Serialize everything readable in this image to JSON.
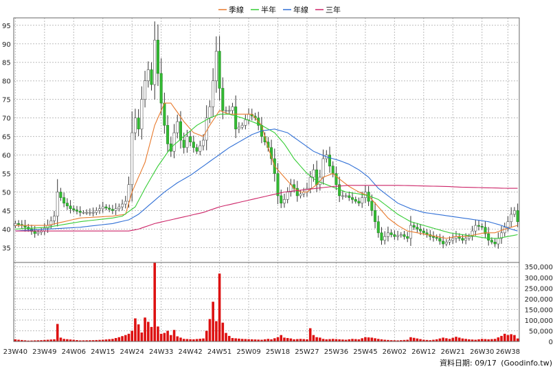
{
  "chart_data": {
    "type": "candlestick",
    "legend": {
      "placement": "top-center",
      "items": [
        {
          "label": "季線",
          "color": "#e8792b"
        },
        {
          "label": "半年",
          "color": "#33cc33"
        },
        {
          "label": "年線",
          "color": "#2f6fd6"
        },
        {
          "label": "三年",
          "color": "#cc2266"
        }
      ]
    },
    "price_axis": {
      "ylim": [
        31,
        97
      ],
      "ticks": [
        35,
        40,
        45,
        50,
        55,
        60,
        65,
        70,
        75,
        80,
        85,
        90,
        95
      ],
      "tick_labels": [
        "35",
        "40",
        "45",
        "50",
        "55",
        "60",
        "65",
        "70",
        "75",
        "80",
        "85",
        "90",
        "95"
      ],
      "grid": true
    },
    "volume_axis": {
      "ylim": [
        0,
        370000
      ],
      "ticks": [
        0,
        50000,
        100000,
        150000,
        200000,
        250000,
        300000,
        350000
      ],
      "tick_labels": [
        "0",
        "50,000",
        "100,000",
        "150,000",
        "200,000",
        "250,000",
        "300,000",
        "350,000"
      ],
      "grid": true
    },
    "x_axis": {
      "n_weeks": 156,
      "tick_weeks": [
        0,
        9,
        18,
        27,
        36,
        45,
        54,
        63,
        72,
        81,
        90,
        99,
        108,
        117,
        126,
        135,
        144,
        152
      ],
      "tick_labels": [
        "23W40",
        "23W49",
        "24W06",
        "24W15",
        "24W24",
        "24W33",
        "24W42",
        "24W51",
        "25W09",
        "25W18",
        "25W27",
        "25W36",
        "25W45",
        "26W02",
        "26W12",
        "26W21",
        "26W30",
        "26W38"
      ]
    },
    "close_anchors": [
      [
        0,
        41.5
      ],
      [
        2,
        41
      ],
      [
        4,
        40
      ],
      [
        6,
        38.8
      ],
      [
        8,
        39.5
      ],
      [
        10,
        41
      ],
      [
        12,
        43.5
      ],
      [
        13,
        50
      ],
      [
        15,
        47
      ],
      [
        17,
        45.5
      ],
      [
        20,
        44.5
      ],
      [
        24,
        44.5
      ],
      [
        27,
        46
      ],
      [
        30,
        45
      ],
      [
        32,
        46
      ],
      [
        34,
        47.5
      ],
      [
        35,
        52
      ],
      [
        36,
        66
      ],
      [
        37,
        70
      ],
      [
        38,
        67
      ],
      [
        39,
        75
      ],
      [
        40,
        80
      ],
      [
        41,
        83
      ],
      [
        42,
        79
      ],
      [
        43,
        91
      ],
      [
        44,
        82
      ],
      [
        45,
        74
      ],
      [
        46,
        68
      ],
      [
        47,
        63
      ],
      [
        48,
        61
      ],
      [
        49,
        66
      ],
      [
        50,
        69
      ],
      [
        51,
        64
      ],
      [
        52,
        62
      ],
      [
        53,
        65
      ],
      [
        55,
        62
      ],
      [
        56,
        61
      ],
      [
        58,
        64
      ],
      [
        59,
        70
      ],
      [
        60,
        73
      ],
      [
        61,
        80
      ],
      [
        62,
        88
      ],
      [
        63,
        78
      ],
      [
        64,
        72
      ],
      [
        66,
        72
      ],
      [
        67,
        73
      ],
      [
        68,
        67
      ],
      [
        70,
        68
      ],
      [
        72,
        71
      ],
      [
        74,
        70
      ],
      [
        75,
        68
      ],
      [
        76,
        65
      ],
      [
        78,
        62
      ],
      [
        79,
        59
      ],
      [
        80,
        55
      ],
      [
        81,
        49
      ],
      [
        82,
        47
      ],
      [
        83,
        48
      ],
      [
        85,
        52
      ],
      [
        86,
        51
      ],
      [
        87,
        49
      ],
      [
        89,
        50
      ],
      [
        90,
        51
      ],
      [
        91,
        54
      ],
      [
        92,
        56
      ],
      [
        93,
        52
      ],
      [
        94,
        54
      ],
      [
        95,
        59
      ],
      [
        96,
        60
      ],
      [
        97,
        57
      ],
      [
        98,
        55
      ],
      [
        99,
        52
      ],
      [
        100,
        49
      ],
      [
        102,
        49
      ],
      [
        104,
        48
      ],
      [
        106,
        47
      ],
      [
        108,
        50
      ],
      [
        110,
        45
      ],
      [
        112,
        39
      ],
      [
        113,
        37
      ],
      [
        115,
        39
      ],
      [
        117,
        38
      ],
      [
        119,
        38.5
      ],
      [
        121,
        37.5
      ],
      [
        122,
        41
      ],
      [
        124,
        40
      ],
      [
        126,
        39
      ],
      [
        128,
        38
      ],
      [
        130,
        37.5
      ],
      [
        132,
        36
      ],
      [
        134,
        37
      ],
      [
        136,
        38
      ],
      [
        138,
        37
      ],
      [
        140,
        38
      ],
      [
        142,
        41
      ],
      [
        144,
        40.5
      ],
      [
        146,
        37
      ],
      [
        148,
        36
      ],
      [
        150,
        39
      ],
      [
        152,
        42
      ],
      [
        153,
        44
      ],
      [
        154,
        45
      ],
      [
        155,
        42
      ]
    ],
    "moving_averages": [
      {
        "name": "季線",
        "color": "#e8792b",
        "points": [
          [
            0,
            41
          ],
          [
            10,
            41
          ],
          [
            20,
            43
          ],
          [
            30,
            43.5
          ],
          [
            34,
            44
          ],
          [
            36,
            50
          ],
          [
            40,
            58
          ],
          [
            43,
            68
          ],
          [
            46,
            74
          ],
          [
            48,
            74
          ],
          [
            52,
            69
          ],
          [
            55,
            66
          ],
          [
            58,
            65
          ],
          [
            60,
            68
          ],
          [
            63,
            72
          ],
          [
            66,
            71
          ],
          [
            70,
            71
          ],
          [
            73,
            71
          ],
          [
            76,
            68
          ],
          [
            78,
            62
          ],
          [
            80,
            57
          ],
          [
            83,
            54
          ],
          [
            86,
            51
          ],
          [
            88,
            50
          ],
          [
            90,
            50
          ],
          [
            93,
            52
          ],
          [
            95,
            54
          ],
          [
            98,
            55
          ],
          [
            100,
            53.5
          ],
          [
            103,
            51.5
          ],
          [
            106,
            50
          ],
          [
            109,
            49
          ],
          [
            112,
            46
          ],
          [
            115,
            43
          ],
          [
            118,
            41
          ],
          [
            121,
            39.5
          ],
          [
            124,
            39
          ],
          [
            127,
            38.5
          ],
          [
            130,
            38
          ],
          [
            133,
            37.5
          ],
          [
            136,
            38
          ],
          [
            139,
            38
          ],
          [
            142,
            38.5
          ],
          [
            145,
            39
          ],
          [
            148,
            39
          ],
          [
            151,
            40
          ],
          [
            155,
            41
          ]
        ]
      },
      {
        "name": "半年",
        "color": "#33cc33",
        "points": [
          [
            0,
            40
          ],
          [
            10,
            40.5
          ],
          [
            20,
            42
          ],
          [
            30,
            43
          ],
          [
            33,
            43.5
          ],
          [
            37,
            46
          ],
          [
            40,
            51
          ],
          [
            44,
            57
          ],
          [
            48,
            62
          ],
          [
            52,
            65
          ],
          [
            56,
            68
          ],
          [
            60,
            70
          ],
          [
            63,
            71
          ],
          [
            66,
            71
          ],
          [
            70,
            70
          ],
          [
            73,
            69
          ],
          [
            76,
            68
          ],
          [
            80,
            66
          ],
          [
            83,
            63
          ],
          [
            86,
            59
          ],
          [
            90,
            55
          ],
          [
            93,
            53
          ],
          [
            96,
            52
          ],
          [
            99,
            51
          ],
          [
            102,
            50
          ],
          [
            106,
            49.5
          ],
          [
            109,
            49
          ],
          [
            112,
            48
          ],
          [
            115,
            46
          ],
          [
            118,
            44
          ],
          [
            122,
            42
          ],
          [
            126,
            41
          ],
          [
            130,
            40
          ],
          [
            134,
            39
          ],
          [
            138,
            38.5
          ],
          [
            142,
            38
          ],
          [
            146,
            37.5
          ],
          [
            149,
            37.5
          ],
          [
            152,
            38
          ],
          [
            155,
            38.5
          ]
        ]
      },
      {
        "name": "年線",
        "color": "#2f6fd6",
        "points": [
          [
            0,
            39.5
          ],
          [
            10,
            40
          ],
          [
            20,
            40.5
          ],
          [
            30,
            41.5
          ],
          [
            35,
            42.5
          ],
          [
            38,
            44
          ],
          [
            42,
            47
          ],
          [
            46,
            50
          ],
          [
            50,
            52.5
          ],
          [
            54,
            54.5
          ],
          [
            58,
            57
          ],
          [
            62,
            59.5
          ],
          [
            66,
            62
          ],
          [
            70,
            64
          ],
          [
            73,
            65.5
          ],
          [
            76,
            66.5
          ],
          [
            80,
            67
          ],
          [
            84,
            66
          ],
          [
            88,
            63.5
          ],
          [
            92,
            61
          ],
          [
            96,
            59.5
          ],
          [
            100,
            58.5
          ],
          [
            103,
            57.5
          ],
          [
            106,
            56
          ],
          [
            109,
            54
          ],
          [
            112,
            51
          ],
          [
            115,
            49
          ],
          [
            118,
            47
          ],
          [
            122,
            45.5
          ],
          [
            126,
            44.5
          ],
          [
            130,
            44
          ],
          [
            134,
            43.5
          ],
          [
            138,
            43
          ],
          [
            142,
            42.5
          ],
          [
            146,
            42
          ],
          [
            150,
            41
          ],
          [
            153,
            40
          ],
          [
            155,
            39.5
          ]
        ]
      },
      {
        "name": "三年",
        "color": "#cc2266",
        "points": [
          [
            0,
            39.5
          ],
          [
            10,
            39.5
          ],
          [
            20,
            39.5
          ],
          [
            30,
            39.5
          ],
          [
            35,
            39.5
          ],
          [
            38,
            40
          ],
          [
            43,
            41.5
          ],
          [
            48,
            42.5
          ],
          [
            53,
            43.5
          ],
          [
            58,
            44.5
          ],
          [
            63,
            46
          ],
          [
            68,
            47
          ],
          [
            73,
            48
          ],
          [
            78,
            49
          ],
          [
            83,
            50
          ],
          [
            88,
            50.5
          ],
          [
            93,
            51
          ],
          [
            98,
            51.5
          ],
          [
            103,
            51.8
          ],
          [
            108,
            51.8
          ],
          [
            113,
            51.8
          ],
          [
            118,
            51.8
          ],
          [
            123,
            51.7
          ],
          [
            128,
            51.6
          ],
          [
            133,
            51.5
          ],
          [
            138,
            51.3
          ],
          [
            143,
            51.2
          ],
          [
            148,
            51.1
          ],
          [
            152,
            51
          ],
          [
            155,
            51
          ]
        ]
      }
    ],
    "volume_anchors": [
      [
        0,
        10000
      ],
      [
        1,
        8000
      ],
      [
        4,
        4000
      ],
      [
        8,
        6000
      ],
      [
        10,
        8000
      ],
      [
        12,
        10000
      ],
      [
        13,
        82000
      ],
      [
        14,
        18000
      ],
      [
        15,
        12000
      ],
      [
        20,
        5000
      ],
      [
        24,
        6000
      ],
      [
        27,
        8000
      ],
      [
        30,
        12000
      ],
      [
        32,
        20000
      ],
      [
        34,
        30000
      ],
      [
        35,
        36000
      ],
      [
        36,
        50000
      ],
      [
        37,
        108000
      ],
      [
        38,
        80000
      ],
      [
        39,
        42000
      ],
      [
        40,
        112000
      ],
      [
        41,
        92000
      ],
      [
        42,
        68000
      ],
      [
        43,
        368000
      ],
      [
        44,
        70000
      ],
      [
        45,
        36000
      ],
      [
        46,
        40000
      ],
      [
        47,
        50000
      ],
      [
        48,
        30000
      ],
      [
        49,
        54000
      ],
      [
        50,
        24000
      ],
      [
        52,
        12000
      ],
      [
        55,
        10000
      ],
      [
        58,
        14000
      ],
      [
        59,
        50000
      ],
      [
        60,
        105000
      ],
      [
        61,
        186000
      ],
      [
        62,
        95000
      ],
      [
        63,
        318000
      ],
      [
        64,
        88000
      ],
      [
        65,
        40000
      ],
      [
        66,
        26000
      ],
      [
        67,
        16000
      ],
      [
        70,
        12000
      ],
      [
        73,
        10000
      ],
      [
        76,
        8000
      ],
      [
        78,
        12000
      ],
      [
        79,
        10000
      ],
      [
        80,
        15000
      ],
      [
        81,
        20000
      ],
      [
        82,
        30000
      ],
      [
        83,
        18000
      ],
      [
        85,
        14000
      ],
      [
        86,
        10000
      ],
      [
        88,
        12000
      ],
      [
        90,
        10000
      ],
      [
        91,
        62000
      ],
      [
        92,
        30000
      ],
      [
        93,
        20000
      ],
      [
        94,
        18000
      ],
      [
        95,
        12000
      ],
      [
        96,
        10000
      ],
      [
        98,
        12000
      ],
      [
        100,
        10000
      ],
      [
        102,
        8000
      ],
      [
        104,
        12000
      ],
      [
        106,
        10000
      ],
      [
        108,
        20000
      ],
      [
        110,
        18000
      ],
      [
        112,
        12000
      ],
      [
        114,
        8000
      ],
      [
        116,
        6000
      ],
      [
        118,
        5000
      ],
      [
        121,
        8000
      ],
      [
        122,
        20000
      ],
      [
        124,
        14000
      ],
      [
        126,
        8000
      ],
      [
        128,
        6000
      ],
      [
        130,
        10000
      ],
      [
        132,
        18000
      ],
      [
        134,
        12000
      ],
      [
        136,
        22000
      ],
      [
        138,
        14000
      ],
      [
        140,
        10000
      ],
      [
        142,
        8000
      ],
      [
        144,
        12000
      ],
      [
        146,
        10000
      ],
      [
        148,
        12000
      ],
      [
        150,
        26000
      ],
      [
        151,
        36000
      ],
      [
        152,
        30000
      ],
      [
        153,
        34000
      ],
      [
        154,
        30000
      ],
      [
        155,
        14000
      ]
    ]
  },
  "footer": {
    "label": "資料日期: 09/17",
    "source": "(Goodinfo.tw)"
  }
}
